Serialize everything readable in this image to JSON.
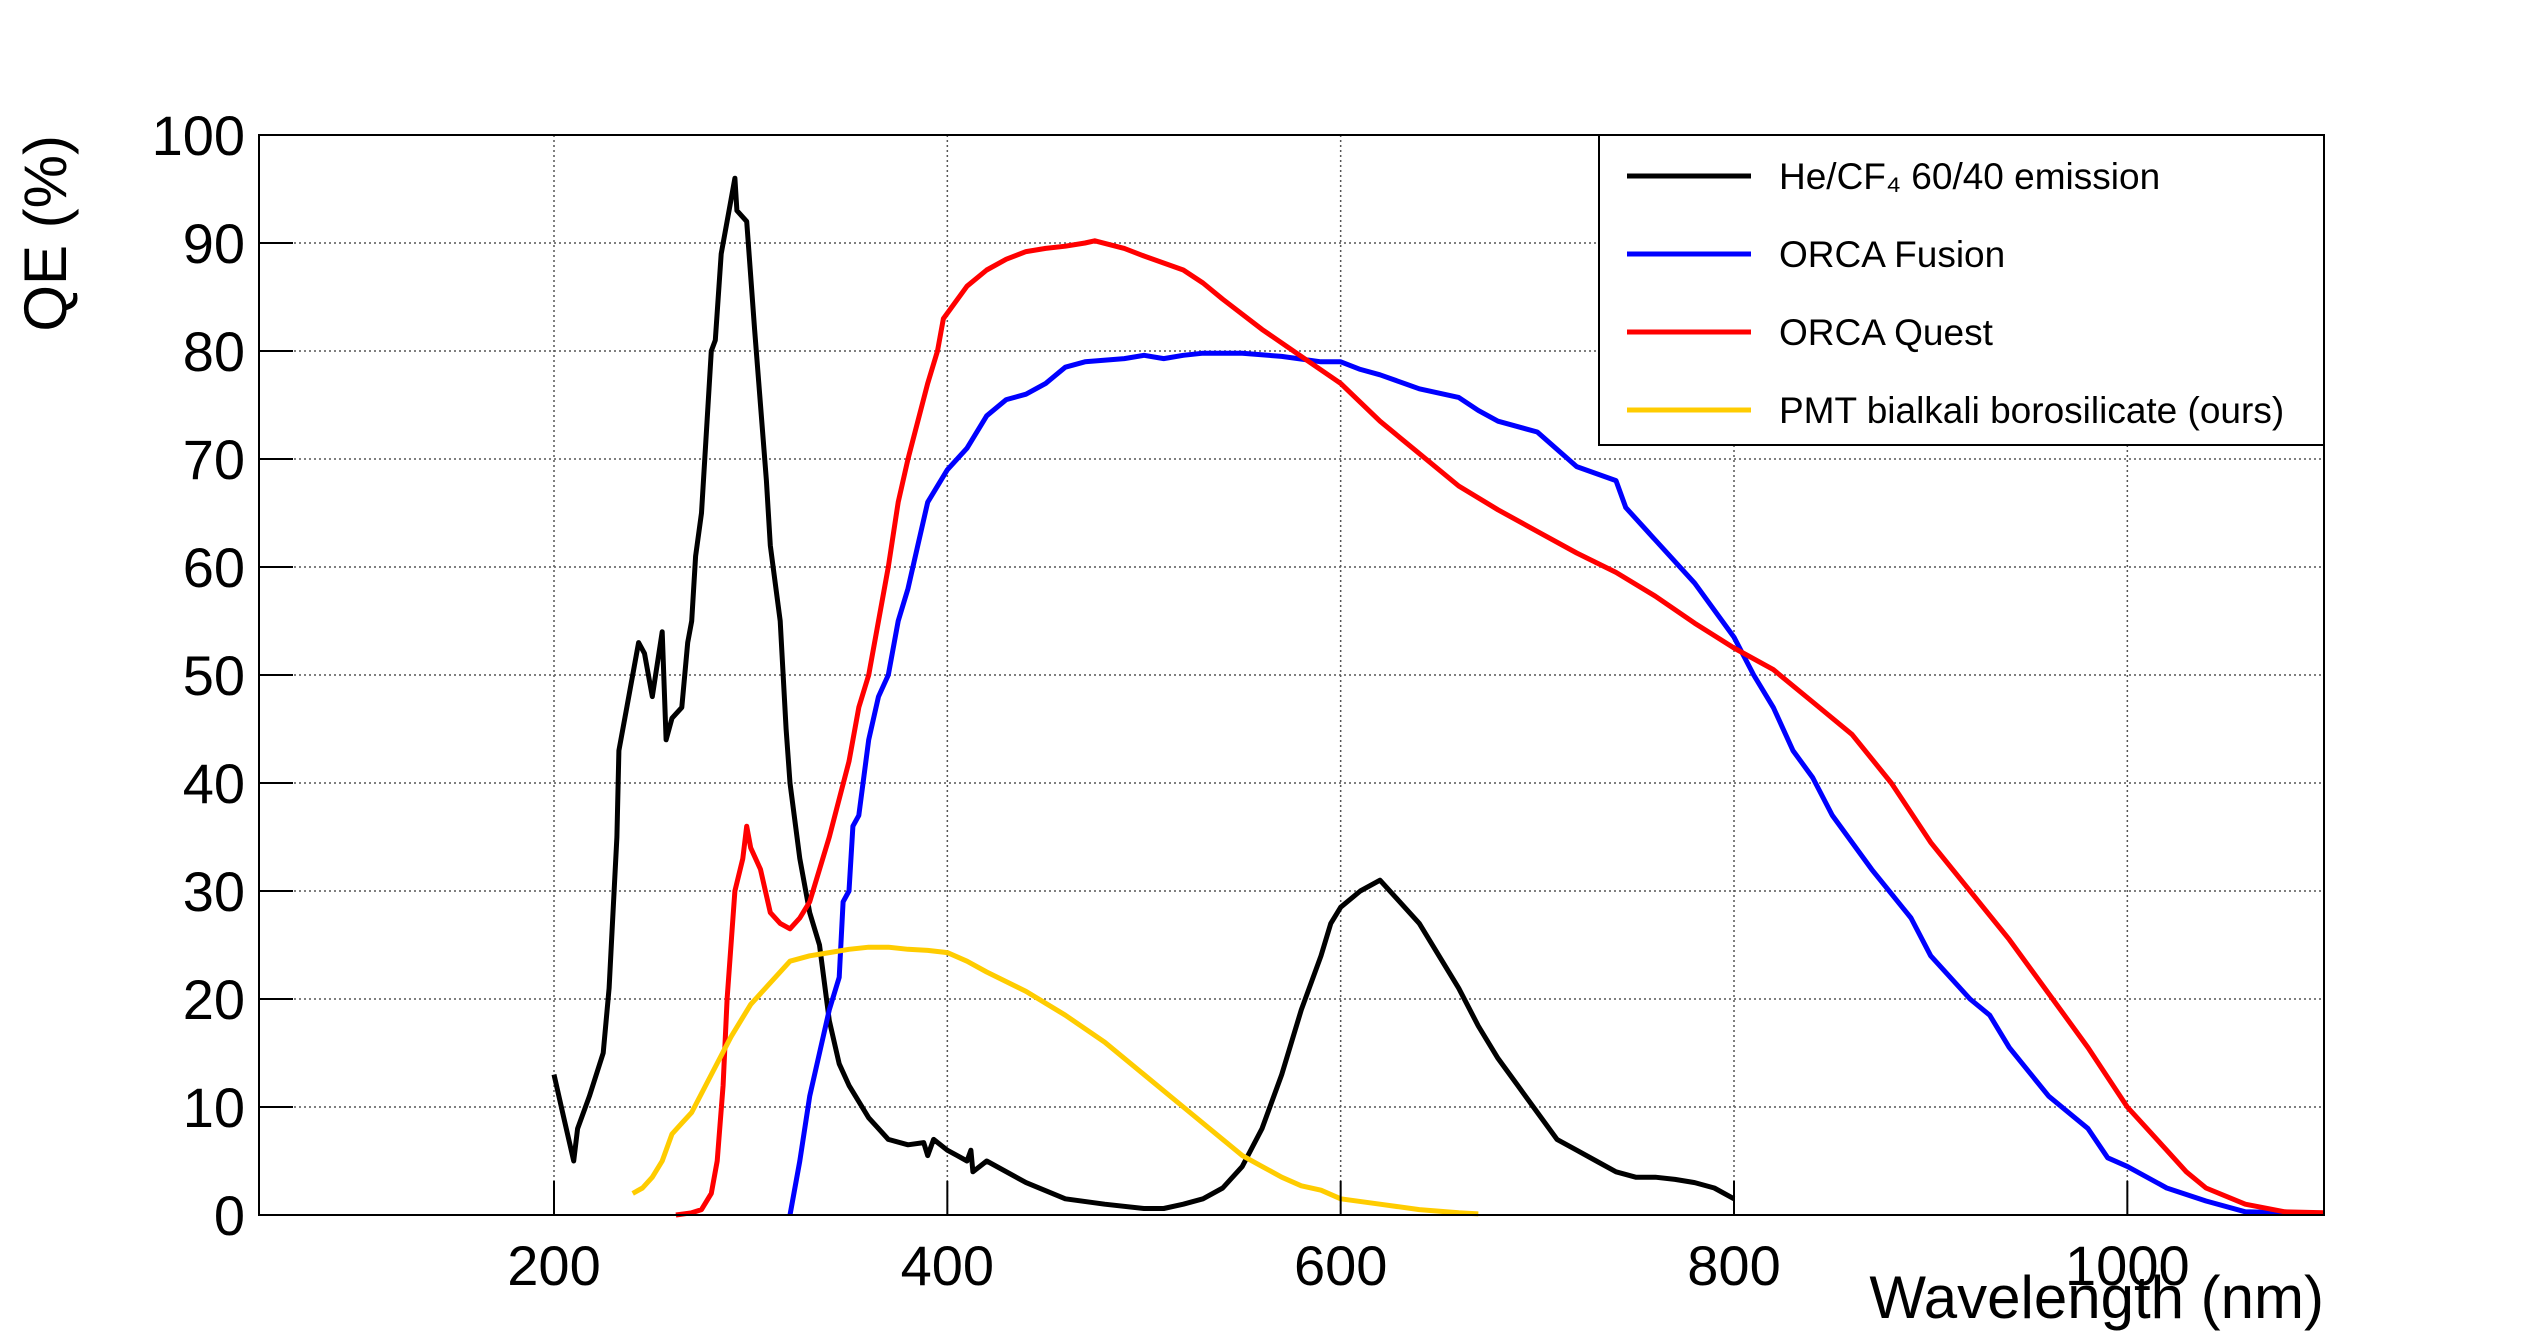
{
  "chart_data": {
    "type": "line",
    "xlabel": "Wavelength (nm)",
    "ylabel": "QE (%)",
    "xlim": [
      50,
      1100
    ],
    "ylim": [
      0,
      100
    ],
    "xticks": [
      200,
      400,
      600,
      800,
      1000
    ],
    "yticks": [
      0,
      10,
      20,
      30,
      40,
      50,
      60,
      70,
      80,
      90,
      100
    ],
    "grid": true,
    "legend": "top-right",
    "series": [
      {
        "name": "He/CF₄ 60/40 emission",
        "color": "#000000",
        "x": [
          200,
          205,
          210,
          212,
          218,
          225,
          228,
          232,
          233,
          237,
          240,
          243,
          246,
          250,
          255,
          257,
          260,
          265,
          268,
          270,
          272,
          275,
          280,
          282,
          285,
          290,
          292,
          293,
          298,
          302,
          305,
          308,
          310,
          315,
          318,
          320,
          325,
          330,
          335,
          340,
          345,
          350,
          360,
          365,
          370,
          380,
          388,
          390,
          393,
          400,
          405,
          410,
          412,
          413,
          420,
          440,
          460,
          480,
          500,
          510,
          520,
          530,
          540,
          550,
          560,
          570,
          580,
          590,
          595,
          600,
          610,
          620,
          630,
          640,
          650,
          660,
          670,
          680,
          690,
          700,
          710,
          720,
          730,
          740,
          750,
          760,
          770,
          780,
          790,
          800
        ],
        "values": [
          13,
          9,
          5,
          8,
          11,
          15,
          21,
          35,
          43,
          47,
          50,
          53,
          52,
          48,
          54,
          44,
          46,
          47,
          53,
          55,
          61,
          65,
          80,
          81,
          89,
          94,
          96,
          93,
          92,
          82,
          75,
          68,
          62,
          55,
          45,
          40,
          33,
          28,
          25,
          18,
          14,
          12,
          9,
          8,
          7,
          6.5,
          6.7,
          5.5,
          7,
          6,
          5.5,
          5,
          6,
          4,
          5,
          3,
          1.5,
          1,
          0.6,
          0.6,
          1,
          1.5,
          2.5,
          4.5,
          8,
          13,
          19,
          24,
          27,
          28.5,
          30,
          31,
          29,
          27,
          24,
          21,
          17.5,
          14.5,
          12,
          9.5,
          7,
          6,
          5,
          4,
          3.5,
          3.5,
          3.3,
          3,
          2.5,
          1.5
        ]
      },
      {
        "name": "ORCA Fusion",
        "color": "#0000ff",
        "x": [
          320,
          325,
          330,
          335,
          340,
          345,
          347,
          350,
          352,
          355,
          360,
          365,
          370,
          375,
          380,
          385,
          390,
          400,
          410,
          420,
          430,
          440,
          450,
          460,
          470,
          490,
          500,
          510,
          520,
          530,
          550,
          570,
          590,
          600,
          610,
          620,
          640,
          660,
          670,
          680,
          700,
          720,
          740,
          745,
          760,
          780,
          800,
          810,
          820,
          830,
          840,
          850,
          870,
          890,
          900,
          920,
          930,
          940,
          960,
          980,
          990,
          1000,
          1020,
          1040,
          1060,
          1080,
          1090
        ],
        "values": [
          0,
          5,
          11,
          15,
          19,
          22,
          29,
          30,
          36,
          37,
          44,
          48,
          50,
          55,
          58,
          62,
          66,
          69,
          71,
          74,
          75.5,
          76,
          77,
          78.5,
          79,
          79.3,
          79.6,
          79.3,
          79.6,
          79.8,
          79.8,
          79.5,
          79,
          79,
          78.3,
          77.8,
          76.5,
          75.7,
          74.5,
          73.5,
          72.5,
          69.3,
          68,
          65.5,
          62.5,
          58.5,
          53.5,
          50,
          47,
          43,
          40.5,
          37,
          32,
          27.5,
          24,
          20,
          18.5,
          15.5,
          11,
          8,
          5.3,
          4.5,
          2.5,
          1.3,
          0.3,
          0.2,
          0.2
        ]
      },
      {
        "name": "ORCA Quest",
        "color": "#ff0000",
        "x": [
          262,
          270,
          275,
          280,
          283,
          286,
          288,
          292,
          296,
          298,
          300,
          305,
          310,
          315,
          320,
          325,
          330,
          340,
          350,
          355,
          360,
          365,
          370,
          375,
          380,
          390,
          395,
          398,
          410,
          420,
          430,
          440,
          450,
          460,
          470,
          475,
          490,
          500,
          520,
          530,
          540,
          560,
          580,
          600,
          620,
          640,
          660,
          680,
          700,
          720,
          740,
          760,
          780,
          800,
          820,
          840,
          860,
          880,
          900,
          920,
          940,
          960,
          980,
          1000,
          1010,
          1020,
          1030,
          1040,
          1060,
          1080,
          1100
        ],
        "values": [
          0,
          0.2,
          0.5,
          2,
          5,
          12,
          20,
          30,
          33,
          36,
          34,
          32,
          28,
          27,
          26.5,
          27.5,
          29,
          35,
          42,
          47,
          50,
          55,
          60,
          66,
          70,
          77,
          80,
          83,
          86,
          87.5,
          88.5,
          89.2,
          89.5,
          89.7,
          90,
          90.2,
          89.5,
          88.8,
          87.5,
          86.3,
          84.8,
          82,
          79.5,
          77,
          73.5,
          70.5,
          67.5,
          65.3,
          63.3,
          61.3,
          59.5,
          57.3,
          54.8,
          52.5,
          50.5,
          47.5,
          44.5,
          40,
          34.5,
          30,
          25.5,
          20.5,
          15.5,
          10,
          8,
          6,
          4,
          2.5,
          1,
          0.3,
          0.2
        ]
      },
      {
        "name": "PMT bialkali borosilicate (ours)",
        "color": "#ffcc00",
        "x": [
          240,
          245,
          250,
          255,
          260,
          265,
          270,
          280,
          290,
          300,
          310,
          320,
          330,
          340,
          350,
          360,
          370,
          380,
          390,
          400,
          410,
          420,
          440,
          460,
          480,
          500,
          520,
          540,
          550,
          560,
          570,
          580,
          590,
          600,
          620,
          640,
          660,
          670
        ],
        "values": [
          2,
          2.5,
          3.5,
          5,
          7.5,
          8.5,
          9.5,
          13,
          16.5,
          19.5,
          21.5,
          23.5,
          24,
          24.3,
          24.6,
          24.8,
          24.8,
          24.6,
          24.5,
          24.3,
          23.5,
          22.5,
          20.7,
          18.5,
          16,
          13,
          10,
          7,
          5.5,
          4.5,
          3.5,
          2.7,
          2.3,
          1.5,
          1,
          0.5,
          0.2,
          0.1
        ]
      }
    ]
  }
}
